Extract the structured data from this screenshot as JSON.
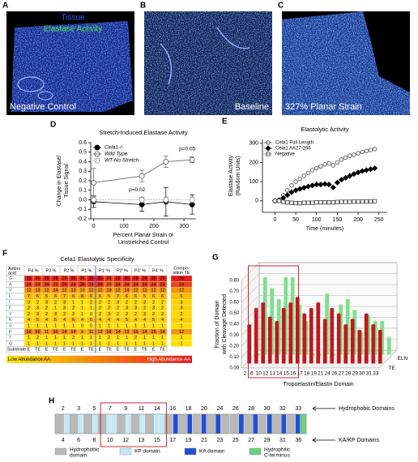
{
  "panels": {
    "a": {
      "letter": "A",
      "legend": [
        "Tissue",
        "Elastase Activity"
      ],
      "caption": "Negative Control"
    },
    "b": {
      "letter": "B",
      "caption": "Baseline"
    },
    "c": {
      "letter": "C",
      "caption": "327% Planar Strain"
    }
  },
  "chart_data": [
    {
      "panel": "D",
      "type": "line",
      "title": "Stretch-Induced Elastase Activity",
      "ylabel": [
        "Change in Elastase/",
        "Tissue Signal"
      ],
      "xlabel": [
        "Percent Planar Strain or",
        "Unstretched Control"
      ],
      "x": [
        0,
        160,
        240,
        327
      ],
      "series": [
        {
          "name": "Cela1-/-",
          "color": "#000000",
          "marker": "filled",
          "values": [
            -0.02,
            -0.05,
            -0.02,
            -0.05
          ],
          "errors": [
            0.06,
            0.07,
            0.15,
            0.1
          ]
        },
        {
          "name": "Wild Type",
          "color": "#555555",
          "marker": "open",
          "values": [
            0.18,
            0.25,
            0.4,
            0.42
          ],
          "errors": [
            0.15,
            0.06,
            0.06,
            0.03
          ]
        },
        {
          "name": "WT-No Stretch",
          "color": "#999999",
          "marker": "open",
          "line_style": "dashed",
          "values": [
            0.0,
            0.0,
            0.0,
            0.0
          ],
          "errors": [
            0.03,
            0.03,
            0.03,
            0.03
          ]
        }
      ],
      "annotations": [
        "p=0.02",
        "p=0.05"
      ],
      "xlim": [
        -10,
        340
      ],
      "xticks": [
        0,
        100,
        200,
        300
      ],
      "ylim": [
        -0.2,
        0.6
      ],
      "yticks": [
        -0.2,
        -0.1,
        {
          "value": 0,
          "label": "0.0"
        },
        0.1,
        0.2,
        0.3,
        0.4,
        0.5,
        0.6
      ]
    },
    {
      "panel": "E",
      "type": "scatter",
      "title": "Elastolytic Activity",
      "ylabel": [
        "Elastase Activity",
        "(Random Units)"
      ],
      "xlabel": [
        "Time (minutes)"
      ],
      "x": [
        0,
        10,
        20,
        30,
        40,
        50,
        60,
        70,
        80,
        90,
        100,
        110,
        120,
        130,
        140,
        150,
        160,
        170,
        180,
        190,
        200,
        210,
        220,
        230,
        240
      ],
      "series": [
        {
          "name": "Cela1 Full Length",
          "color": "#444444",
          "marker": "circle-open",
          "values": [
            0,
            5,
            30,
            55,
            80,
            100,
            115,
            130,
            145,
            160,
            170,
            180,
            190,
            195,
            185,
            200,
            215,
            225,
            235,
            240,
            248,
            255,
            260,
            265,
            270
          ]
        },
        {
          "name": "Cela1 AA27-266",
          "color": "#000000",
          "marker": "diamond",
          "values": [
            0,
            3,
            15,
            30,
            45,
            55,
            62,
            68,
            75,
            80,
            85,
            85,
            88,
            85,
            70,
            95,
            110,
            120,
            130,
            140,
            148,
            155,
            160,
            165,
            170
          ]
        },
        {
          "name": "Negative",
          "color": "#444444",
          "marker": "square-open",
          "values": [
            0,
            0,
            -5,
            -8,
            -10,
            -12,
            -12,
            -10,
            -10,
            -10,
            -8,
            -8,
            -8,
            -8,
            -8,
            -6,
            -5,
            -5,
            -5,
            -4,
            -4,
            -3,
            -3,
            -3,
            -2
          ]
        }
      ],
      "xlim": [
        -30,
        270
      ],
      "xticks": [
        0,
        50,
        100,
        150,
        200,
        250
      ],
      "ylim": [
        -60,
        320
      ],
      "yticks": [
        0,
        100,
        200,
        300
      ]
    },
    {
      "panel": "G",
      "type": "bar3d",
      "ylabel": [
        "Fraction of Domain",
        "with Cleavage Detected"
      ],
      "xlabel": [
        "Tropoelastin/Elastin Domain"
      ],
      "categories": [
        "2",
        "6",
        "10",
        "12",
        "13",
        "14",
        "15",
        "16",
        "17",
        "18",
        "19",
        "21",
        "24",
        "26",
        "27",
        "28",
        "29",
        "30",
        "31",
        "33"
      ],
      "series": [
        {
          "name": "TE",
          "color": "#c0181c",
          "values": [
            0.35,
            0.5,
            0.55,
            0.42,
            0.38,
            0.5,
            0.55,
            0.6,
            0.45,
            0.5,
            0.55,
            0.4,
            0.5,
            0.45,
            0.35,
            0.4,
            0.3,
            0.45,
            0.35,
            0.3
          ]
        },
        {
          "name": "ELN",
          "color": "#7fe08c",
          "values": [
            0,
            0.7,
            0.6,
            0.5,
            0.7,
            0.7,
            0.45,
            0.3,
            0,
            0,
            0.55,
            0,
            0.45,
            0.5,
            0.4,
            0.2,
            0.35,
            0.3,
            0.3,
            0.15
          ]
        }
      ],
      "ylim": [
        0,
        0.8
      ],
      "yticks": [
        {
          "value": 0,
          "label": "0.00"
        },
        {
          "value": 0.1,
          "label": "0.10"
        },
        {
          "value": 0.2,
          "label": "0.20"
        },
        {
          "value": 0.3,
          "label": "0.30"
        },
        {
          "value": 0.4,
          "label": "0.40"
        },
        {
          "value": 0.5,
          "label": "0.50"
        },
        {
          "value": 0.6,
          "label": "0.60"
        },
        {
          "value": 0.7,
          "label": "0.70"
        },
        {
          "value": 0.8,
          "label": "0.80"
        }
      ]
    }
  ],
  "table": {
    "letter": "F",
    "title": "Cela1 Elastolytic Specificity",
    "corner_header": [
      "Amino",
      "acid"
    ],
    "positions": [
      "P4 %",
      "P3 %",
      "P2 %",
      "P1 %",
      "P1' %",
      "P2' %",
      "P3' %",
      "P4' %"
    ],
    "composition_header": [
      "Compo-",
      "sition TE"
    ],
    "substrate_label": "Substrate",
    "substrate": [
      "E",
      "TE",
      "E",
      "TE",
      "E",
      "TE",
      "E",
      "TE",
      "E",
      "TE",
      "E",
      "TE",
      "E",
      "TE",
      "E",
      "TE"
    ],
    "rows": [
      {
        "aa": "G",
        "values": [
          28,
          26,
          28,
          28,
          26,
          28,
          26,
          30,
          30,
          26,
          28,
          30,
          28,
          28,
          28,
          28
        ],
        "composition": 30
      },
      {
        "aa": "A",
        "values": [
          24,
          23,
          24,
          23,
          26,
          24,
          26,
          24,
          26,
          20,
          24,
          24,
          24,
          24,
          24,
          24
        ],
        "composition": 24
      },
      {
        "aa": "V",
        "values": [
          12,
          13,
          12,
          14,
          12,
          13,
          10,
          12,
          12,
          13,
          12,
          14,
          12,
          12,
          12,
          12
        ],
        "composition": 12
      },
      {
        "aa": "L",
        "values": [
          7,
          6,
          5,
          6,
          7,
          6,
          8,
          6,
          6,
          5,
          7,
          6,
          6,
          5,
          6,
          6
        ],
        "composition": 6
      },
      {
        "aa": "I",
        "values": [
          3,
          2,
          3,
          2,
          3,
          1,
          1,
          2,
          2,
          2,
          3,
          2,
          2,
          3,
          2,
          2
        ],
        "composition": 3
      },
      {
        "aa": "F",
        "values": [
          2,
          3,
          2,
          1,
          3,
          2,
          1,
          1,
          2,
          2,
          2,
          3,
          3,
          2,
          3,
          2
        ],
        "composition": 3
      },
      {
        "aa": "Y",
        "values": [
          2,
          3,
          2,
          3,
          2,
          2,
          1,
          0,
          2,
          3,
          2,
          2,
          2,
          3,
          2,
          2
        ],
        "composition": 2
      },
      {
        "aa": "K",
        "values": [
          4,
          5,
          4,
          5,
          4,
          6,
          4,
          6,
          4,
          4,
          4,
          5,
          4,
          4,
          5,
          4
        ],
        "composition": 4
      },
      {
        "aa": "S",
        "values": [
          1,
          1,
          1,
          1,
          1,
          1,
          0,
          0,
          1,
          1,
          1,
          1,
          1,
          1,
          1,
          1
        ],
        "composition": 1
      },
      {
        "aa": "P",
        "values": [
          16,
          16,
          11,
          16,
          14,
          14,
          9,
          11,
          12,
          16,
          14,
          13,
          15,
          14,
          15,
          14
        ],
        "composition": 12
      },
      {
        "aa": "T",
        "values": [
          1,
          2,
          1,
          1,
          1,
          2,
          1,
          1,
          1,
          2,
          1,
          1,
          2,
          1,
          1,
          1
        ],
        "composition": 1
      },
      {
        "aa": "Q",
        "values": [
          1,
          1,
          1,
          1,
          1,
          1,
          1,
          1,
          1,
          1,
          1,
          1,
          1,
          1,
          1,
          1
        ],
        "composition": 1
      }
    ],
    "scale_low": "Low Abundance AA",
    "scale_high": "High Abundance AA"
  },
  "domain_map": {
    "letter": "H",
    "top_labels": [
      2,
      3,
      5,
      7,
      9,
      11,
      14,
      16,
      18,
      20,
      24,
      26,
      28,
      30,
      32,
      33
    ],
    "bottom_labels": [
      4,
      6,
      8,
      10,
      12,
      13,
      15,
      17,
      19,
      21,
      23,
      25,
      27,
      29,
      31,
      36
    ],
    "top_caption": "Hydrophobic Domains",
    "bottom_caption": "KA/KP Domains",
    "segments": [
      "h",
      "kp",
      "h",
      "kp",
      "h",
      "kp",
      "h",
      "kp",
      "kp",
      "h",
      "kp",
      "h",
      "kp",
      "h",
      "kp",
      "kp",
      "h",
      "ka",
      "h",
      "ka",
      "h",
      "ka",
      "h",
      "ka",
      "h",
      "h",
      "ka",
      "h",
      "ka",
      "h",
      "ka",
      "h",
      "ka",
      "h",
      "ka",
      "c"
    ],
    "legend": [
      {
        "kind": "h",
        "color": "#b9b9b9",
        "label": [
          "Hydrophobic",
          "domain"
        ]
      },
      {
        "kind": "kp",
        "color": "#c4e9f8",
        "label": [
          "KP domain"
        ]
      },
      {
        "kind": "ka",
        "color": "#1f4fd2",
        "label": [
          "KA domain"
        ]
      },
      {
        "kind": "c",
        "color": "#6ccf7a",
        "label": [
          "Hydrophilic",
          "C-terminus"
        ]
      }
    ]
  }
}
